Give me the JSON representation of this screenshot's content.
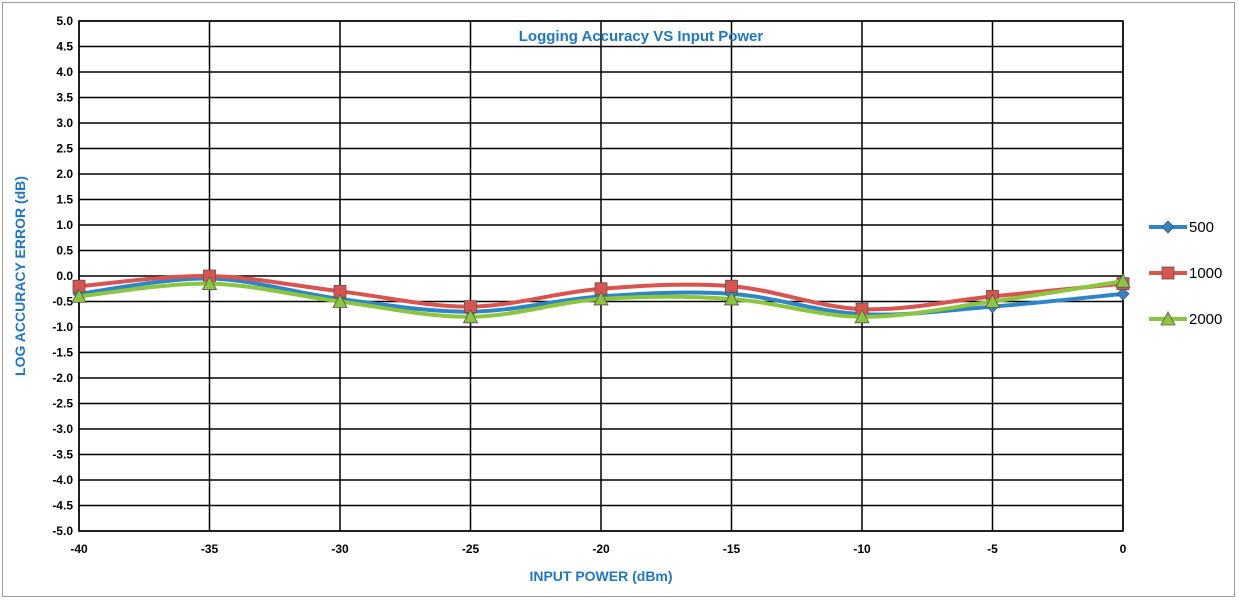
{
  "chart_data": {
    "type": "line",
    "title": "Logging Accuracy VS Input Power",
    "xlabel": "INPUT POWER (dBm)",
    "ylabel": "LOG ACCURACY ERROR (dB)",
    "x": [
      -40,
      -35,
      -30,
      -25,
      -20,
      -15,
      -10,
      -5,
      0
    ],
    "xlim": [
      -40,
      0
    ],
    "ylim": [
      -5.0,
      5.0
    ],
    "x_ticks": [
      "-40",
      "-35",
      "-30",
      "-25",
      "-20",
      "-15",
      "-10",
      "-5",
      "0"
    ],
    "y_ticks": [
      "5.0",
      "4.5",
      "4.0",
      "3.5",
      "3.0",
      "2.5",
      "2.0",
      "1.5",
      "1.0",
      "0.5",
      "0.0",
      "-0.5",
      "-1.0",
      "-1.5",
      "-2.0",
      "-2.5",
      "-3.0",
      "-3.5",
      "-4.0",
      "-4.5",
      "-5.0"
    ],
    "grid": true,
    "legend_position": "right",
    "title_color": "#1f77c4",
    "axis_title_color": "#1f77c4",
    "series": [
      {
        "name": "500",
        "color": "#2e86c9",
        "marker": "diamond",
        "values": [
          -0.35,
          -0.05,
          -0.45,
          -0.7,
          -0.4,
          -0.35,
          -0.75,
          -0.6,
          -0.35
        ]
      },
      {
        "name": "1000",
        "color": "#d9534f",
        "marker": "square",
        "values": [
          -0.2,
          0.0,
          -0.3,
          -0.6,
          -0.25,
          -0.2,
          -0.65,
          -0.4,
          -0.15
        ]
      },
      {
        "name": "2000",
        "color": "#8cc63f",
        "marker": "triangle",
        "values": [
          -0.4,
          -0.15,
          -0.5,
          -0.8,
          -0.45,
          -0.45,
          -0.8,
          -0.5,
          -0.1
        ]
      }
    ]
  }
}
